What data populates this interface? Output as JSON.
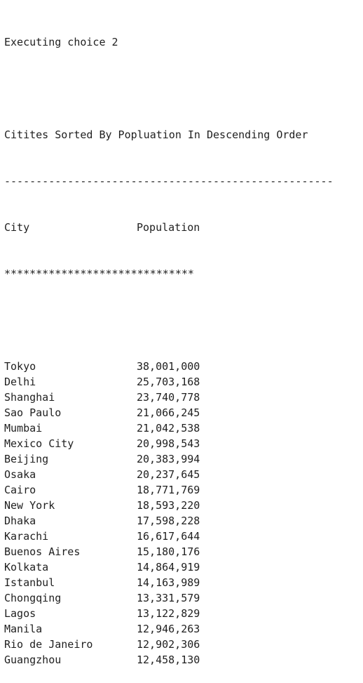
{
  "console": {
    "status": "Executing choice 2",
    "title": "Citites Sorted By Popluation In Descending Order",
    "dash_rule": "----------------------------------------------------",
    "header": {
      "city": "City",
      "population": "Population"
    },
    "star_rule": "******************************",
    "rows": [
      {
        "city": "Tokyo",
        "population": "38,001,000"
      },
      {
        "city": "Delhi",
        "population": "25,703,168"
      },
      {
        "city": "Shanghai",
        "population": "23,740,778"
      },
      {
        "city": "Sao Paulo",
        "population": "21,066,245"
      },
      {
        "city": "Mumbai",
        "population": "21,042,538"
      },
      {
        "city": "Mexico City",
        "population": "20,998,543"
      },
      {
        "city": "Beijing",
        "population": "20,383,994"
      },
      {
        "city": "Osaka",
        "population": "20,237,645"
      },
      {
        "city": "Cairo",
        "population": "18,771,769"
      },
      {
        "city": "New York",
        "population": "18,593,220"
      },
      {
        "city": "Dhaka",
        "population": "17,598,228"
      },
      {
        "city": "Karachi",
        "population": "16,617,644"
      },
      {
        "city": "Buenos Aires",
        "population": "15,180,176"
      },
      {
        "city": "Kolkata",
        "population": "14,864,919"
      },
      {
        "city": "Istanbul",
        "population": "14,163,989"
      },
      {
        "city": "Chongqing",
        "population": "13,331,579"
      },
      {
        "city": "Lagos",
        "population": "13,122,829"
      },
      {
        "city": "Manila",
        "population": "12,946,263"
      },
      {
        "city": "Rio de Janeiro",
        "population": "12,902,306"
      },
      {
        "city": "Guangzhou",
        "population": "12,458,130"
      }
    ]
  }
}
